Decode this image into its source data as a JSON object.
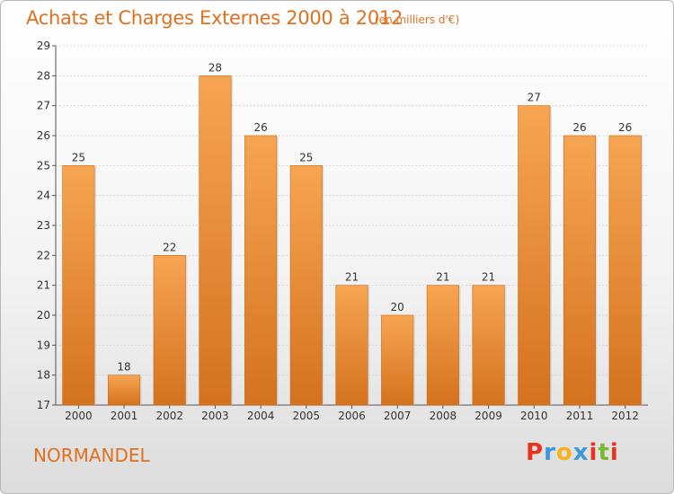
{
  "header": {
    "title": "Achats et Charges Externes 2000 à 2012",
    "subtitle": "(en milliers d'€)"
  },
  "footer": {
    "commune": "NORMANDEL",
    "logo_letters": [
      "P",
      "r",
      "o",
      "x",
      "i",
      "t",
      "i"
    ],
    "logo_colors": [
      "#e8341c",
      "#3a9ad9",
      "#f7b21b",
      "#3a9ad9",
      "#e8341c",
      "#7cb82f",
      "#e8341c"
    ]
  },
  "chart_data": {
    "type": "bar",
    "title": "Achats et Charges Externes 2000 à 2012",
    "subtitle": "(en milliers d'€)",
    "categories": [
      "2000",
      "2001",
      "2002",
      "2003",
      "2004",
      "2005",
      "2006",
      "2007",
      "2008",
      "2009",
      "2010",
      "2011",
      "2012"
    ],
    "values": [
      25,
      18,
      22,
      28,
      26,
      25,
      21,
      20,
      21,
      21,
      27,
      26,
      26
    ],
    "ylim": [
      17,
      29
    ],
    "yticks": [
      17,
      18,
      19,
      20,
      21,
      22,
      23,
      24,
      25,
      26,
      27,
      28,
      29
    ],
    "grid": true,
    "bar_color_top": "#f7a552",
    "bar_color_bottom": "#d4721e"
  }
}
